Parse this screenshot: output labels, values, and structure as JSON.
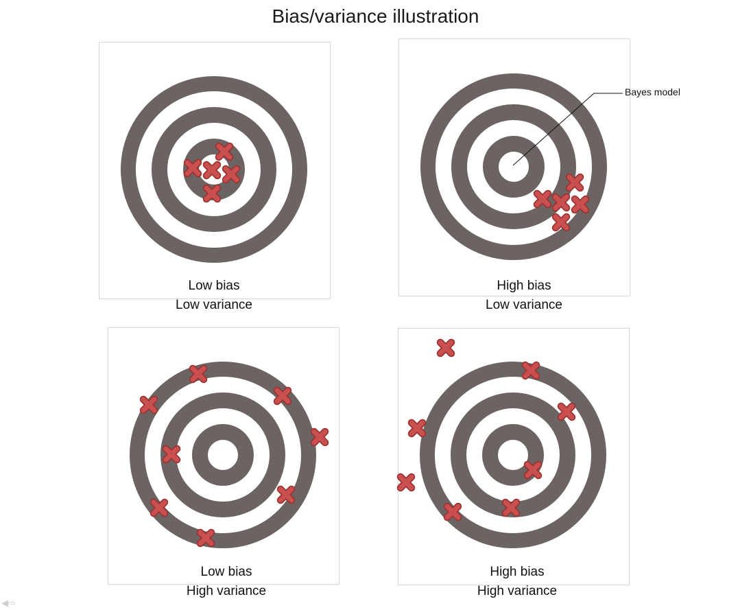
{
  "title": "Bias/variance illustration",
  "panels": [
    {
      "bias": "Low bias",
      "variance": "Low variance"
    },
    {
      "bias": "High bias",
      "variance": "Low variance"
    },
    {
      "bias": "Low bias",
      "variance": "High variance"
    },
    {
      "bias": "High bias",
      "variance": "High variance"
    }
  ],
  "annotation": "Bayes model",
  "colors": {
    "ring": "#6b6462",
    "mark_fill": "#c9504f",
    "mark_stroke": "#9a3434",
    "panel_border": "#d9d9d9"
  },
  "icons": {
    "mark": "cross-marker-icon",
    "nav": "nav-arrows-icon"
  }
}
